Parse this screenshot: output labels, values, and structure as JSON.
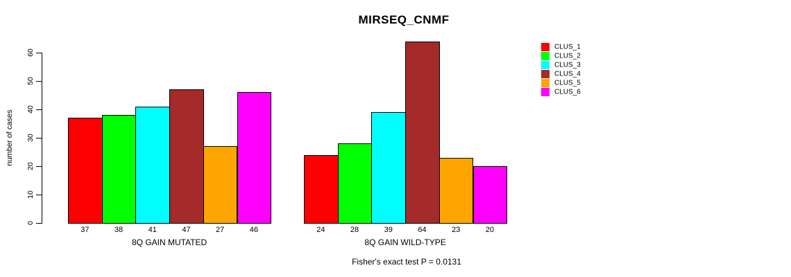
{
  "chart_data": {
    "type": "bar",
    "title": "MIRSEQ_CNMF",
    "ylabel": "number of cases",
    "xlabel": "",
    "categories": [
      "8Q GAIN MUTATED",
      "8Q GAIN WILD-TYPE"
    ],
    "series": [
      {
        "name": "CLUS_1",
        "color": "#FF0000",
        "values": [
          37,
          24
        ]
      },
      {
        "name": "CLUS_2",
        "color": "#00FF00",
        "values": [
          38,
          28
        ]
      },
      {
        "name": "CLUS_3",
        "color": "#00FFFF",
        "values": [
          41,
          39
        ]
      },
      {
        "name": "CLUS_4",
        "color": "#A52A2A",
        "values": [
          47,
          64
        ]
      },
      {
        "name": "CLUS_5",
        "color": "#FFA500",
        "values": [
          27,
          23
        ]
      },
      {
        "name": "CLUS_6",
        "color": "#FF00FF",
        "values": [
          46,
          20
        ]
      }
    ],
    "bar_value_labels": [
      [
        "37",
        "38",
        "41",
        "47",
        "27",
        "46"
      ],
      [
        "24",
        "28",
        "39",
        "64",
        "23",
        "20"
      ]
    ],
    "yticks": [
      0,
      10,
      20,
      30,
      40,
      50,
      60
    ],
    "ylim": [
      0,
      66
    ],
    "grid": false,
    "legend_position": "right",
    "legend_entries": [
      "CLUS_1",
      "CLUS_2",
      "CLUS_3",
      "CLUS_4",
      "CLUS_5",
      "CLUS_6"
    ],
    "annotation": "Fisher's exact test P = 0.0131"
  }
}
